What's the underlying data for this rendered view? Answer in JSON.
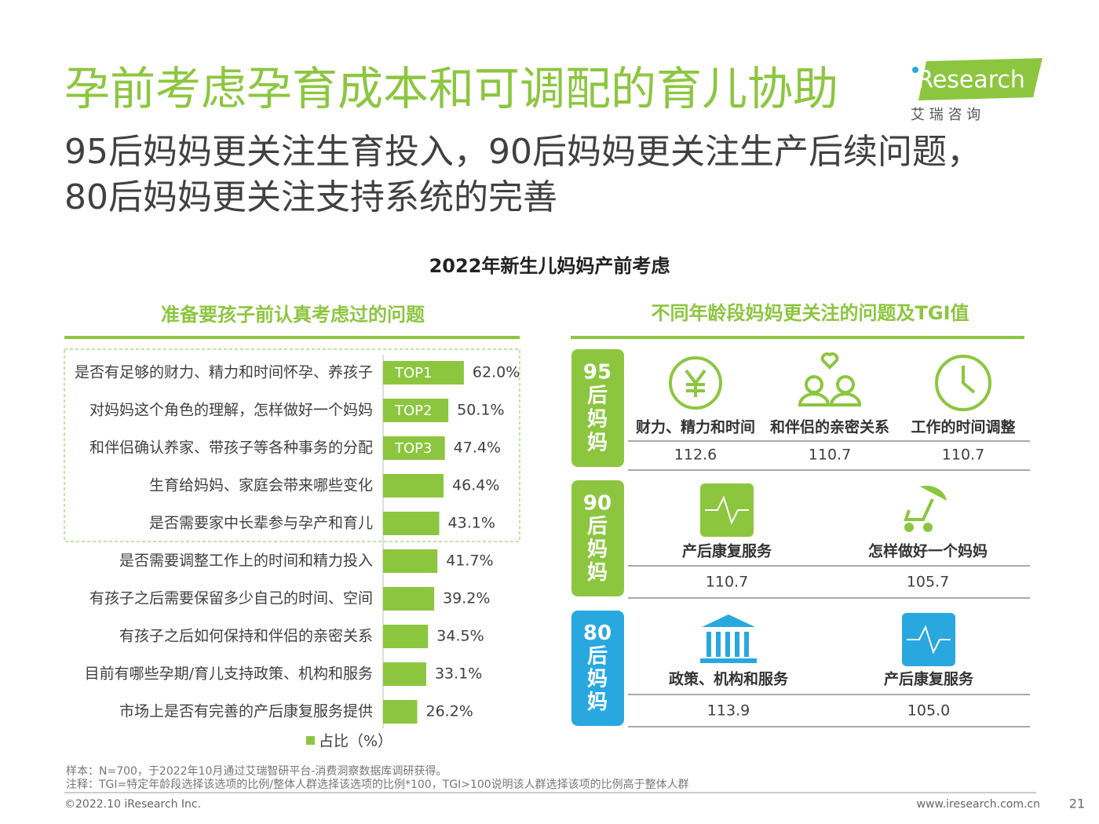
{
  "header": {
    "title": "孕前考虑孕育成本和可调配的育儿协助",
    "subtitle_lines": [
      "95后妈妈更关注生育投入，90后妈妈更关注生产后续问题，",
      "80后妈妈更关注支持系统的完善"
    ],
    "logo": "iResearch",
    "logo_sub": "艾  瑞  咨  询"
  },
  "section_title": "2022年新生儿妈妈产前考虑",
  "chart_data": {
    "type": "bar",
    "orientation": "horizontal",
    "title": "准备要孩子前认真考虑过的问题",
    "categories": [
      "是否有足够的财力、精力和时间怀孕、养孩子",
      "对妈妈这个角色的理解，怎样做好一个妈妈",
      "和伴侣确认养家、带孩子等各种事务的分配",
      "生育给妈妈、家庭会带来哪些变化",
      "是否需要家中长辈参与孕产和育儿",
      "是否需要调整工作上的时间和精力投入",
      "有孩子之后需要保留多少自己的时间、空间",
      "有孩子之后如何保持和伴侣的亲密关系",
      "目前有哪些孕期/育儿支持政策、机构和服务",
      "市场上是否有完善的产后康复服务提供"
    ],
    "series": [
      {
        "name": "占比（%）",
        "color": "#8cc63f",
        "values": [
          62.0,
          50.1,
          47.4,
          46.4,
          43.1,
          41.7,
          39.2,
          34.5,
          33.1,
          26.2
        ],
        "value_labels": [
          "62.0%",
          "50.1%",
          "47.4%",
          "46.4%",
          "43.1%",
          "41.7%",
          "39.2%",
          "34.5%",
          "33.1%",
          "26.2%"
        ]
      }
    ],
    "annotations": [
      "TOP1",
      "TOP2",
      "TOP3"
    ],
    "legend": "bottom"
  },
  "tgi_panel": {
    "title": "不同年龄段妈妈更关注的问题及TGI值",
    "groups": [
      {
        "label_lines": [
          "95",
          "后",
          "妈",
          "妈"
        ],
        "color": "#8cc63f",
        "items": [
          {
            "label": "财力、精力和时间",
            "tgi": "112.6"
          },
          {
            "label": "和伴侣的亲密关系",
            "tgi": "110.7"
          },
          {
            "label": "工作的时间调整",
            "tgi": "110.7"
          }
        ]
      },
      {
        "label_lines": [
          "90",
          "后",
          "妈",
          "妈"
        ],
        "color": "#8cc63f",
        "items": [
          {
            "label": "产后康复服务",
            "tgi": "110.7"
          },
          {
            "label": "怎样做好一个妈妈",
            "tgi": "105.7"
          }
        ]
      },
      {
        "label_lines": [
          "80",
          "后",
          "妈",
          "妈"
        ],
        "color": "#29a8e0",
        "items": [
          {
            "label": "政策、机构和服务",
            "tgi": "113.9"
          },
          {
            "label": "产后康复服务",
            "tgi": "105.0"
          }
        ]
      }
    ]
  },
  "footer": {
    "notes": [
      "样本：N=700，于2022年10月通过艾瑞智研平台-消费洞察数据库调研获得。",
      "注释：TGI=特定年龄段选择该选项的比例/整体人群选择该选项的比例*100，TGI>100说明该人群选择该项的比例高于整体人群"
    ],
    "copyright": "©2022.10 iResearch Inc.",
    "url": "www.iresearch.com.cn",
    "page": "21"
  }
}
